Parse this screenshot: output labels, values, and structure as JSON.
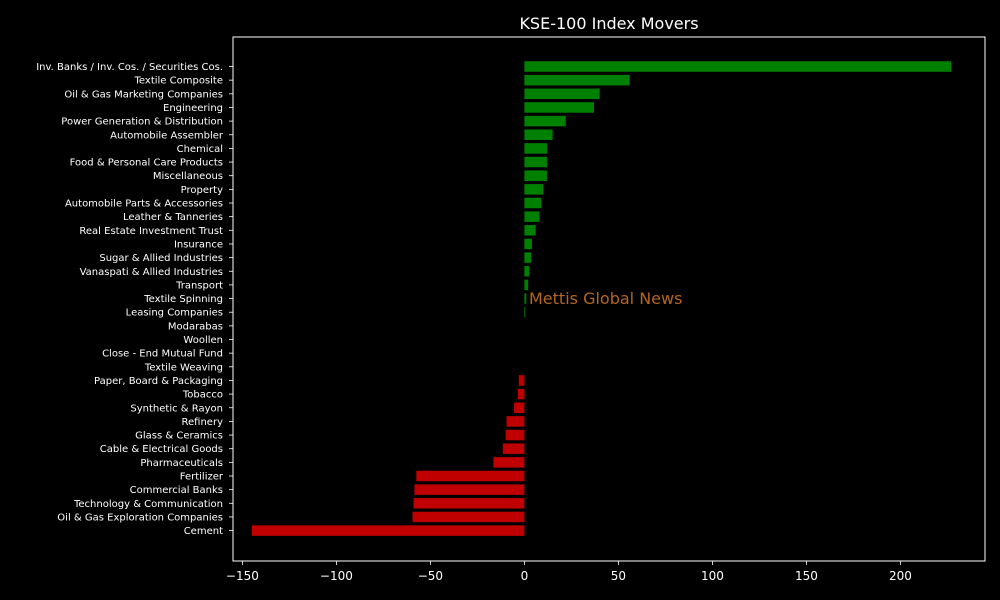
{
  "chart_data": {
    "type": "bar",
    "orientation": "horizontal",
    "title": "KSE-100 Index Movers",
    "xlabel": "",
    "ylabel": "",
    "xlim": [
      -155,
      245
    ],
    "xticks": [
      -150,
      -100,
      -50,
      0,
      50,
      100,
      150,
      200
    ],
    "xtick_labels": [
      "−150",
      "−100",
      "−50",
      "0",
      "50",
      "100",
      "150",
      "200"
    ],
    "grid": false,
    "categories": [
      "Inv. Banks / Inv. Cos. / Securities Cos.",
      "Textile Composite",
      "Oil & Gas Marketing Companies",
      "Engineering",
      "Power Generation & Distribution",
      "Automobile Assembler",
      "Chemical",
      "Food & Personal Care Products",
      "Miscellaneous",
      "Property",
      "Automobile Parts & Accessories",
      "Leather & Tanneries",
      "Real Estate Investment Trust",
      "Insurance",
      "Sugar & Allied Industries",
      "Vanaspati & Allied Industries",
      "Transport",
      "Textile Spinning",
      "Leasing Companies",
      "Modarabas",
      "Woollen",
      "Close - End Mutual Fund",
      "Textile Weaving",
      "Paper, Board & Packaging",
      "Tobacco",
      "Synthetic & Rayon",
      "Refinery",
      "Glass & Ceramics",
      "Cable & Electrical Goods",
      "Pharmaceuticals",
      "Fertilizer",
      "Commercial Banks",
      "Technology & Communication",
      "Oil & Gas Exploration Companies",
      "Cement"
    ],
    "values": [
      227,
      56,
      40,
      37,
      22,
      15,
      12,
      12,
      12,
      10,
      9,
      8,
      6,
      4,
      3.5,
      2.5,
      2,
      1,
      0.5,
      0,
      0,
      0,
      0,
      -3,
      -3.5,
      -5.5,
      -9.5,
      -10,
      -11.5,
      -16.5,
      -57.5,
      -58.5,
      -59,
      -59.5,
      -145
    ],
    "colors": {
      "positive": "#008000",
      "negative": "#c00000"
    },
    "watermark": {
      "text": "Mettis Global News",
      "color": "#b5651d"
    }
  }
}
